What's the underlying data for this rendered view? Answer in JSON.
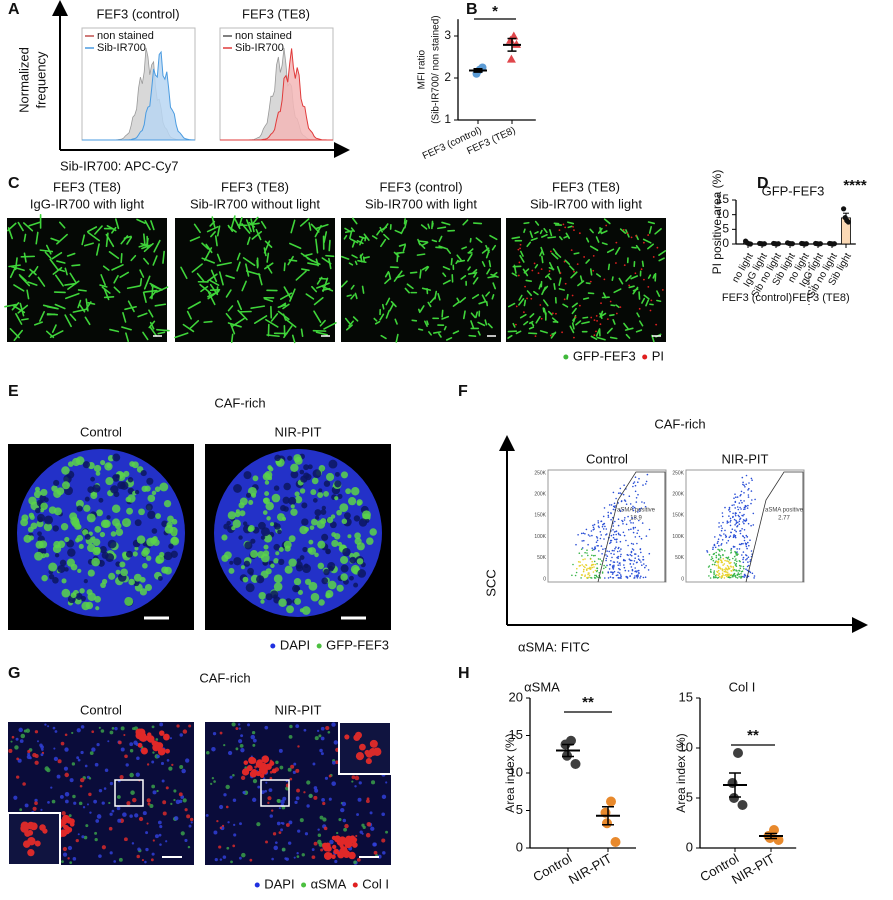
{
  "panels": {
    "A": {
      "letter": "A",
      "titles": [
        "FEF3 (control)",
        "FEF3 (TE8)"
      ],
      "legends": [
        [
          "non stained",
          "Sib-IR700"
        ],
        [
          "non stained",
          "Sib-IR700"
        ]
      ],
      "ylabel": [
        "Normalized",
        "frequency"
      ],
      "xlabel": "Sib-IR700: APC-Cy7"
    },
    "B": {
      "letter": "B"
    },
    "C": {
      "letter": "C",
      "images": [
        [
          "FEF3 (TE8)",
          "IgG-IR700 with light"
        ],
        [
          "FEF3 (TE8)",
          "Sib-IR700 without light"
        ],
        [
          "FEF3 (control)",
          "Sib-IR700 with light"
        ],
        [
          "FEF3 (TE8)",
          "Sib-IR700 with light"
        ]
      ],
      "legend": [
        "GFP-FEF3",
        "PI"
      ]
    },
    "D": {
      "letter": "D"
    },
    "E": {
      "letter": "E",
      "title": "CAF-rich",
      "images": [
        "Control",
        "NIR-PIT"
      ],
      "legend": [
        "DAPI",
        "GFP-FEF3"
      ]
    },
    "F": {
      "letter": "F",
      "title": "CAF-rich",
      "plots": [
        "Control",
        "NIR-PIT"
      ],
      "ylabel": "SCC",
      "xlabel": "αSMA: FITC",
      "yticks": [
        "250K",
        "200K",
        "150K",
        "100K",
        "50K",
        "0"
      ],
      "gate_label": "aSMA positive",
      "gate_values": [
        18.9,
        2.77
      ]
    },
    "G": {
      "letter": "G",
      "title": "CAF-rich",
      "images": [
        "Control",
        "NIR-PIT"
      ],
      "legend": [
        "DAPI",
        "αSMA",
        "Col I"
      ]
    },
    "H": {
      "letter": "H"
    }
  },
  "chart_data": [
    {
      "type": "dot",
      "ylabel": [
        "MFI ratio",
        "(Sib-IR700/ non stained)"
      ],
      "categories": [
        "FEF3 (control)",
        "FEF3 (TE8)"
      ],
      "points": [
        [
          2.2,
          2.1,
          2.15,
          2.25
        ],
        [
          3.0,
          2.9,
          2.45,
          2.8
        ]
      ],
      "means": [
        2.18,
        2.79
      ],
      "errors": [
        0.04,
        0.15
      ],
      "colors": [
        "#5b9bd5",
        "#e0464b"
      ],
      "markers": [
        "circle",
        "triangle"
      ],
      "ylim": [
        1,
        3.4
      ],
      "yticks": [
        1,
        2,
        3
      ],
      "annotation": "*"
    },
    {
      "type": "bar",
      "title": "GFP-FEF3",
      "ylabel": "PI positive area (%)",
      "categories": [
        "no light",
        "IgG light",
        "Sib no light",
        "Sib light",
        "no light",
        "IgG light",
        "Sib no light",
        "Sib light"
      ],
      "groups": [
        "FEF3 (control)",
        "FEF3 (TE8)"
      ],
      "values": [
        0.35,
        0.1,
        0.1,
        0.2,
        0.1,
        0.1,
        0.1,
        8.9
      ],
      "errors": [
        0.25,
        0.05,
        0.05,
        0.1,
        0.05,
        0.05,
        0.05,
        1.6
      ],
      "points": [
        [
          1.0,
          0.4,
          0.1,
          0
        ],
        [
          0.2,
          0.1,
          0,
          0.1
        ],
        [
          0.2,
          0.1,
          0,
          0.1
        ],
        [
          0.4,
          0.2,
          0.1,
          0.1
        ],
        [
          0.2,
          0.1,
          0,
          0.1
        ],
        [
          0.2,
          0.1,
          0,
          0.1
        ],
        [
          0.2,
          0.1,
          0,
          0.1
        ],
        [
          12,
          9,
          8,
          7.5
        ]
      ],
      "colors": [
        "#ffffff",
        "#ffffff",
        "#ffffff",
        "#ffffff",
        "#ffffff",
        "#ffffff",
        "#ffffff",
        "#fbd9b5"
      ],
      "ylim": [
        0,
        15
      ],
      "yticks": [
        0,
        5,
        10,
        15
      ],
      "annotation": "****"
    },
    {
      "type": "dot",
      "title": "αSMA",
      "ylabel": "Area index (%)",
      "categories": [
        "Control",
        "NIR-PIT"
      ],
      "points": [
        [
          14.3,
          13.8,
          12.3,
          11.2
        ],
        [
          6.2,
          4.7,
          3.3,
          0.8
        ]
      ],
      "means": [
        13,
        4.3
      ],
      "errors": [
        0.8,
        1.2
      ],
      "colors": [
        "#3f3f3f",
        "#e8892c"
      ],
      "markers": [
        "circle",
        "circle"
      ],
      "ylim": [
        0,
        20
      ],
      "yticks": [
        0,
        5,
        10,
        15,
        20
      ],
      "annotation": "**"
    },
    {
      "type": "dot",
      "title": "Col I",
      "ylabel": "Area index (%)",
      "categories": [
        "Control",
        "NIR-PIT"
      ],
      "points": [
        [
          9.5,
          6.5,
          5,
          4.3
        ],
        [
          1.8,
          1.2,
          1.0,
          0.8
        ]
      ],
      "means": [
        6.3,
        1.2
      ],
      "errors": [
        1.2,
        0.25
      ],
      "colors": [
        "#3f3f3f",
        "#e8892c"
      ],
      "markers": [
        "circle",
        "circle"
      ],
      "ylim": [
        0,
        15
      ],
      "yticks": [
        0,
        5,
        10,
        15
      ],
      "annotation": "**"
    }
  ]
}
